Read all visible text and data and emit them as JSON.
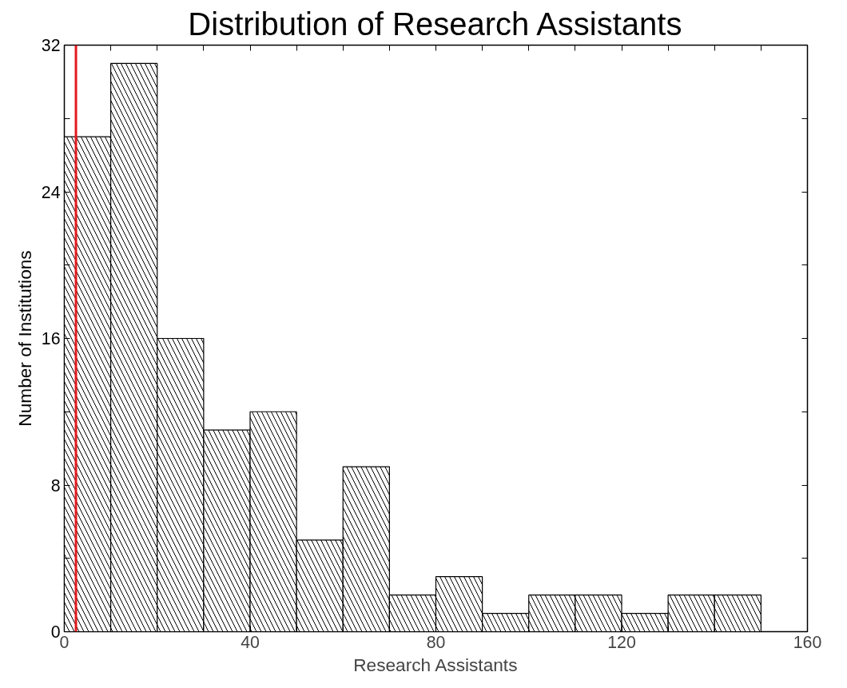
{
  "chart_data": {
    "type": "histogram",
    "title": "Distribution of Research Assistants",
    "xlabel": "Research Assistants",
    "ylabel": "Number of Institutions",
    "bins": [
      0,
      10,
      20,
      30,
      40,
      50,
      60,
      70,
      80,
      90,
      100,
      110,
      120,
      130,
      140,
      150
    ],
    "values": [
      27,
      31,
      16,
      11,
      12,
      5,
      9,
      2,
      3,
      1,
      2,
      2,
      1,
      2,
      2
    ],
    "color": "#ffffff",
    "xlim": [
      0,
      160
    ],
    "ylim": [
      0,
      32
    ],
    "xticks": [
      0,
      {
        "value": 10,
        "label": null
      },
      {
        "value": 20,
        "label": null
      },
      {
        "value": 30,
        "label": null
      },
      40,
      {
        "value": 50,
        "label": null
      },
      {
        "value": 60,
        "label": null
      },
      {
        "value": 70,
        "label": null
      },
      80,
      {
        "value": 90,
        "label": null
      },
      {
        "value": 100,
        "label": null
      },
      {
        "value": 110,
        "label": null
      },
      120,
      {
        "value": 130,
        "label": null
      },
      {
        "value": 140,
        "label": null
      },
      {
        "value": 150,
        "label": null
      },
      160
    ],
    "yticks": [
      0,
      {
        "value": 4,
        "label": null
      },
      8,
      {
        "value": 12,
        "label": null
      },
      16,
      {
        "value": 20,
        "label": null
      },
      24,
      {
        "value": 28,
        "label": null
      },
      32
    ],
    "ref_lines": [
      {
        "axis": "x",
        "value": 2.5,
        "color": "#e41a1c"
      }
    ],
    "grid": false
  }
}
